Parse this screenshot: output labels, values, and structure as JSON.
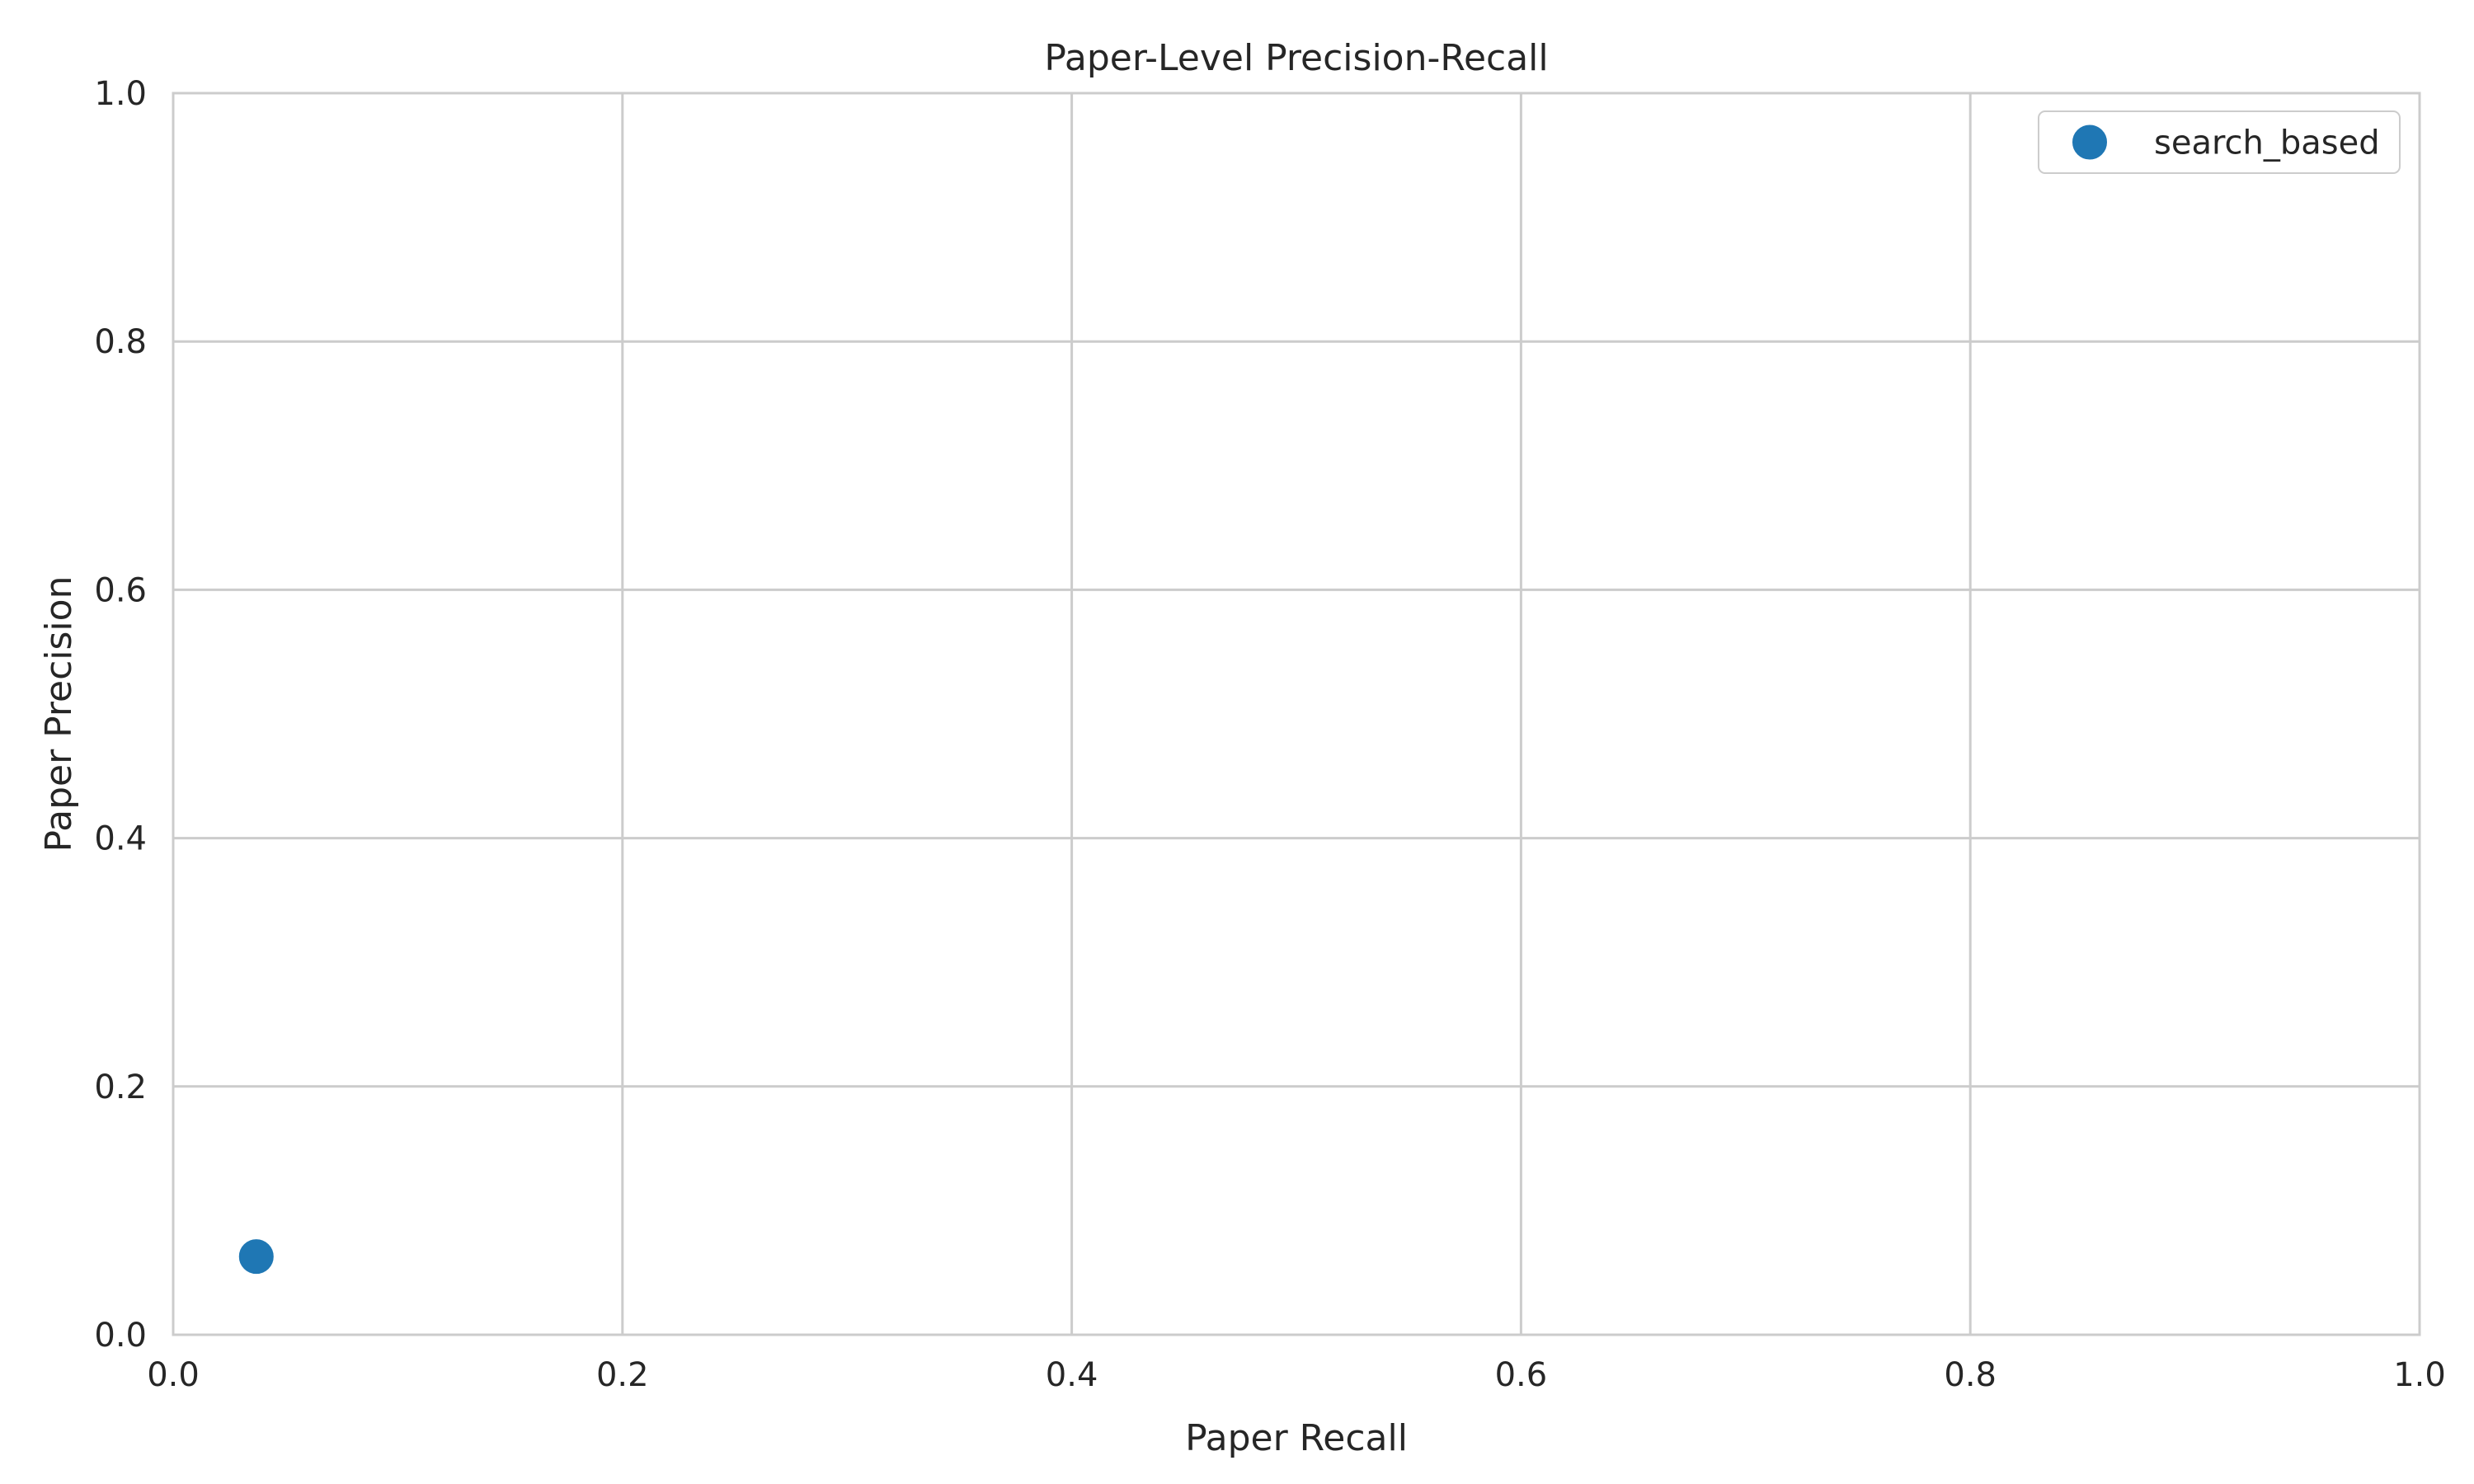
{
  "chart_data": {
    "type": "scatter",
    "title": "Paper-Level Precision-Recall",
    "xlabel": "Paper Recall",
    "ylabel": "Paper Precision",
    "xlim": [
      0.0,
      1.0
    ],
    "ylim": [
      0.0,
      1.0
    ],
    "xticks": [
      "0.0",
      "0.2",
      "0.4",
      "0.6",
      "0.8",
      "1.0"
    ],
    "yticks": [
      "0.0",
      "0.2",
      "0.4",
      "0.6",
      "0.8",
      "1.0"
    ],
    "grid": true,
    "legend_position": "top-right",
    "series": [
      {
        "name": "search_based",
        "color": "#1f77b4",
        "points": [
          {
            "x": 0.037,
            "y": 0.063
          }
        ]
      }
    ]
  }
}
